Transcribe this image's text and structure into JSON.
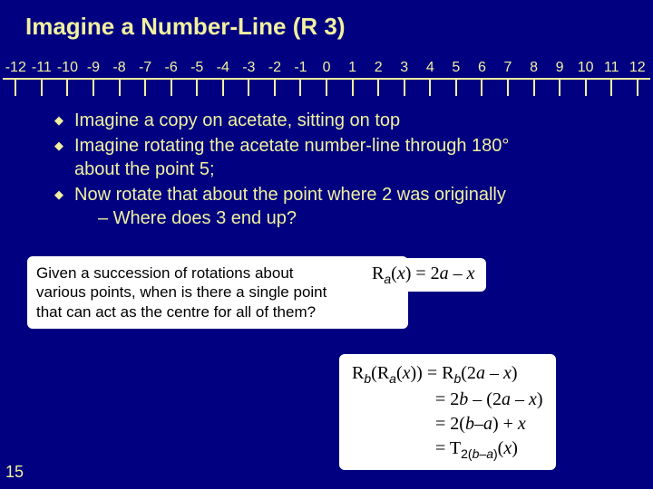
{
  "title": "Imagine a Number-Line (R 3)",
  "numberLine": {
    "labels": [
      "-12",
      "-11",
      "-10",
      "-9",
      "-8",
      "-7",
      "-6",
      "-5",
      "-4",
      "-3",
      "-2",
      "-1",
      "0",
      "1",
      "2",
      "3",
      "4",
      "5",
      "6",
      "7",
      "8",
      "9",
      "10",
      "11",
      "12"
    ]
  },
  "bullets": {
    "b1": "Imagine a copy on acetate, sitting on top",
    "b2a": "Imagine rotating the acetate number-line through 180°",
    "b2b": "about the point 5;",
    "b3": "Now rotate that about the point where 2 was originally",
    "sub1": "– Where does 3 end up?"
  },
  "question": {
    "l1": "Given a succession of rotations about",
    "l2": "various points, when is there a single point",
    "l3": "that can act as the centre for all of them?"
  },
  "formula": {
    "R": "R",
    "sub_a": "a",
    "lp": "(",
    "x": "x",
    "rp": ")",
    "eq": " = 2",
    "a": "a",
    "minus_x": " – ",
    "x2": "x"
  },
  "derivation": {
    "row1": {
      "R1": "R",
      "sub_b": "b",
      "lp1": "(",
      "R2": "R",
      "sub_a": "a",
      "lp2": "(",
      "x1": "x",
      "rp1": "))",
      "eq": " = ",
      "R3": "R",
      "sub_b2": "b",
      "lp3": "(2",
      "a": "a",
      "minus": " – ",
      "x2": "x",
      "rp2": ")"
    },
    "row2": {
      "eq": "= 2",
      "b": "b",
      "minus": " – (2",
      "a": "a",
      "minus2": " – ",
      "x": "x",
      "rp": ")"
    },
    "row3": {
      "eq": "= 2(",
      "b": "b",
      "dash": "–",
      "a": "a",
      "rp": ") + ",
      "x": "x"
    },
    "row4": {
      "eq": "= T",
      "sub1": "2(",
      "sub_b": "b",
      "sub_dash": "–",
      "sub_a": "a",
      "sub2": ")",
      "lp": "(",
      "x": "x",
      "rp": ")"
    }
  },
  "pageNumber": "15",
  "colors": {
    "background": "#000080",
    "text": "#f0f0a0",
    "box_bg": "#ffffff",
    "box_text": "#000000"
  }
}
